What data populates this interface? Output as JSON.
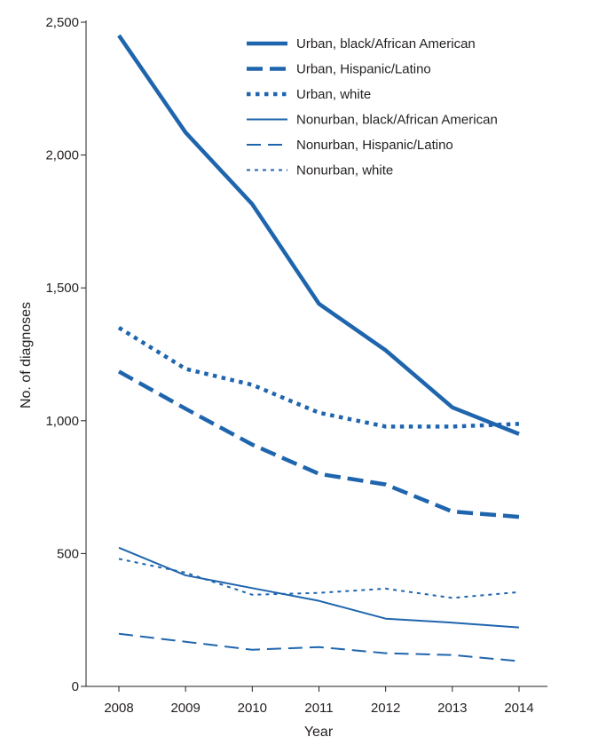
{
  "chart_data": {
    "type": "line",
    "title": "",
    "xlabel": "Year",
    "ylabel": "No. of diagnoses",
    "x": [
      "2008",
      "2009",
      "2010",
      "2011",
      "2012",
      "2013",
      "2014"
    ],
    "ylim": [
      0,
      2500
    ],
    "yticks": [
      0,
      500,
      1000,
      1500,
      2000,
      2500
    ],
    "y_tick_labels": [
      "0",
      "500",
      "1,000",
      "1,500",
      "2,000",
      "2,500"
    ],
    "grid": false,
    "legend_position": "top-right",
    "line_color": "#1f65ad",
    "series": [
      {
        "name": "Urban, black/African American",
        "style": "thick-solid",
        "values": [
          2450,
          2085,
          1815,
          1440,
          1265,
          1050,
          950
        ]
      },
      {
        "name": "Urban, Hispanic/Latino",
        "style": "thick-dashed",
        "values": [
          1185,
          1045,
          910,
          800,
          760,
          658,
          638
        ]
      },
      {
        "name": "Urban, white",
        "style": "thick-dotted",
        "values": [
          1350,
          1195,
          1135,
          1030,
          978,
          978,
          988
        ]
      },
      {
        "name": "Nonurban, black/African American",
        "style": "thin-solid",
        "values": [
          522,
          418,
          370,
          322,
          255,
          240,
          222
        ]
      },
      {
        "name": "Nonurban, Hispanic/Latino",
        "style": "thin-dashed",
        "values": [
          198,
          168,
          138,
          148,
          125,
          118,
          95
        ]
      },
      {
        "name": "Nonurban, white",
        "style": "thin-dotted",
        "values": [
          480,
          428,
          345,
          352,
          368,
          333,
          355
        ]
      }
    ]
  }
}
